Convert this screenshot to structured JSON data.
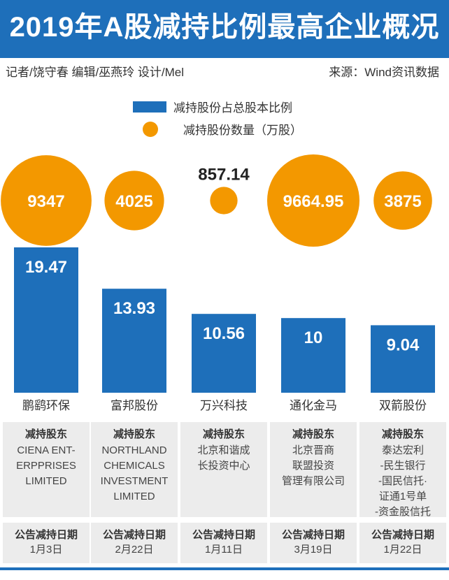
{
  "header": {
    "title": "2019年A股减持比例最高企业概况",
    "credits": "记者/饶守春  编辑/巫燕玲  设计/Mel",
    "source": "来源：Wind资讯数据"
  },
  "legend": {
    "bar_label": "减持股份占总股本比例",
    "bubble_label": "减持股份数量（万股）"
  },
  "colors": {
    "bar": "#1e6fba",
    "bubble": "#f39800",
    "panel": "#ececec"
  },
  "chart_data": {
    "type": "bar",
    "categories": [
      "鹏鹞环保",
      "富邦股份",
      "万兴科技",
      "通化金马",
      "双箭股份"
    ],
    "series": [
      {
        "name": "减持股份占总股本比例",
        "values": [
          19.47,
          13.93,
          10.56,
          10,
          9.04
        ],
        "value_labels": [
          "19.47",
          "13.93",
          "10.56",
          "10",
          "9.04"
        ]
      },
      {
        "name": "减持股份数量（万股）",
        "values": [
          9347,
          4025,
          857.14,
          9664.95,
          3875
        ],
        "value_labels": [
          "9347",
          "4025",
          "857.14",
          "9664.95",
          "3875"
        ]
      }
    ],
    "ylim": [
      0,
      19.47
    ]
  },
  "companies": [
    {
      "name": "鹏鹞环保",
      "holder_header": "减持股东",
      "holder": "CIENA ENT-\nERPPRISES\nLIMITED",
      "date_header": "公告减持日期",
      "date": "1月3日"
    },
    {
      "name": "富邦股份",
      "holder_header": "减持股东",
      "holder": "NORTHLAND\nCHEMICALS\nINVESTMENT\nLIMITED",
      "date_header": "公告减持日期",
      "date": "2月22日"
    },
    {
      "name": "万兴科技",
      "holder_header": "减持股东",
      "holder": "北京和谐成\n长投资中心",
      "date_header": "公告减持日期",
      "date": "1月11日"
    },
    {
      "name": "通化金马",
      "holder_header": "减持股东",
      "holder": "北京晋商\n联盟投资\n管理有限公司",
      "date_header": "公告减持日期",
      "date": "3月19日"
    },
    {
      "name": "双箭股份",
      "holder_header": "减持股东",
      "holder": "泰达宏利\n-民生银行\n-国民信托·\n证通1号单\n-资金股信托",
      "date_header": "公告减持日期",
      "date": "1月22日"
    }
  ]
}
